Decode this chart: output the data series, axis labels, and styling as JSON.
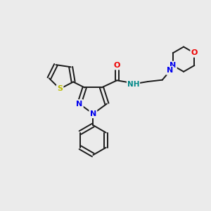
{
  "bg_color": "#ebebeb",
  "bond_color": "#1a1a1a",
  "atom_colors": {
    "N": "#0000ee",
    "O": "#ee0000",
    "S": "#bbbb00",
    "NH": "#008888"
  },
  "lw": 1.4,
  "fs": 8.0
}
